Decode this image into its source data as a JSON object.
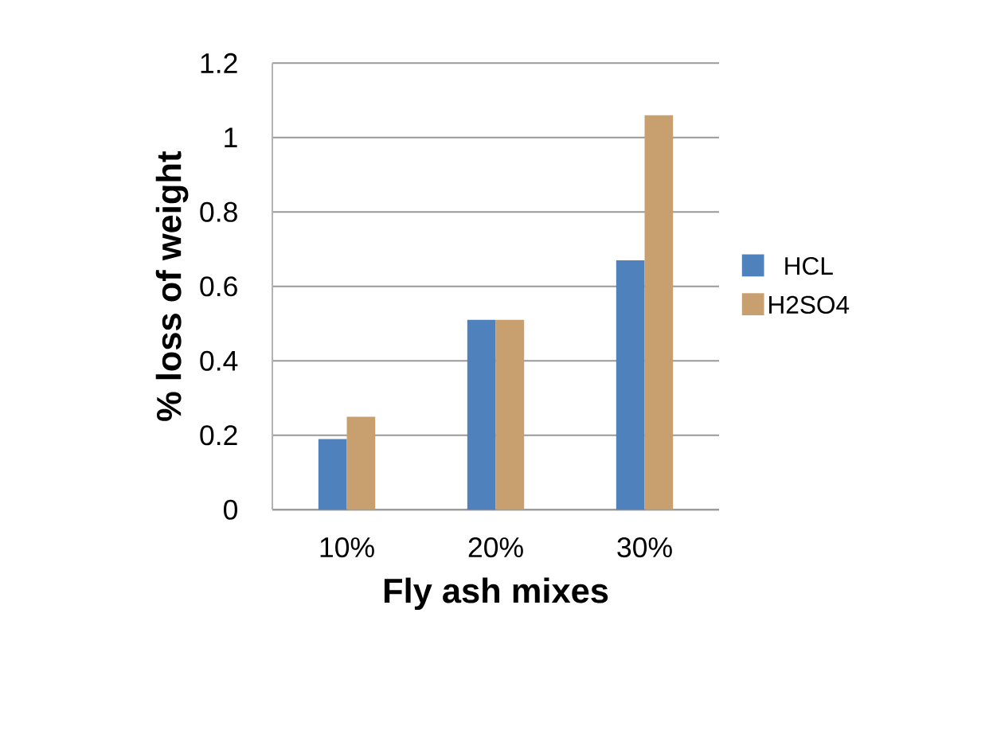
{
  "chart_data": {
    "type": "bar",
    "xlabel": "Fly ash mixes",
    "ylabel": "% loss of weight",
    "categories": [
      "10%",
      "20%",
      "30%"
    ],
    "series": [
      {
        "name": "HCL",
        "color": "#4f81bd",
        "values": [
          0.19,
          0.51,
          0.67
        ]
      },
      {
        "name": "H2SO4",
        "color": "#c8a070",
        "values": [
          0.25,
          0.51,
          1.06
        ]
      }
    ],
    "ylim": [
      0,
      1.2
    ],
    "yticks": [
      0,
      0.2,
      0.4,
      0.6,
      0.8,
      1,
      1.2
    ],
    "grid": "y",
    "legend": "right"
  }
}
